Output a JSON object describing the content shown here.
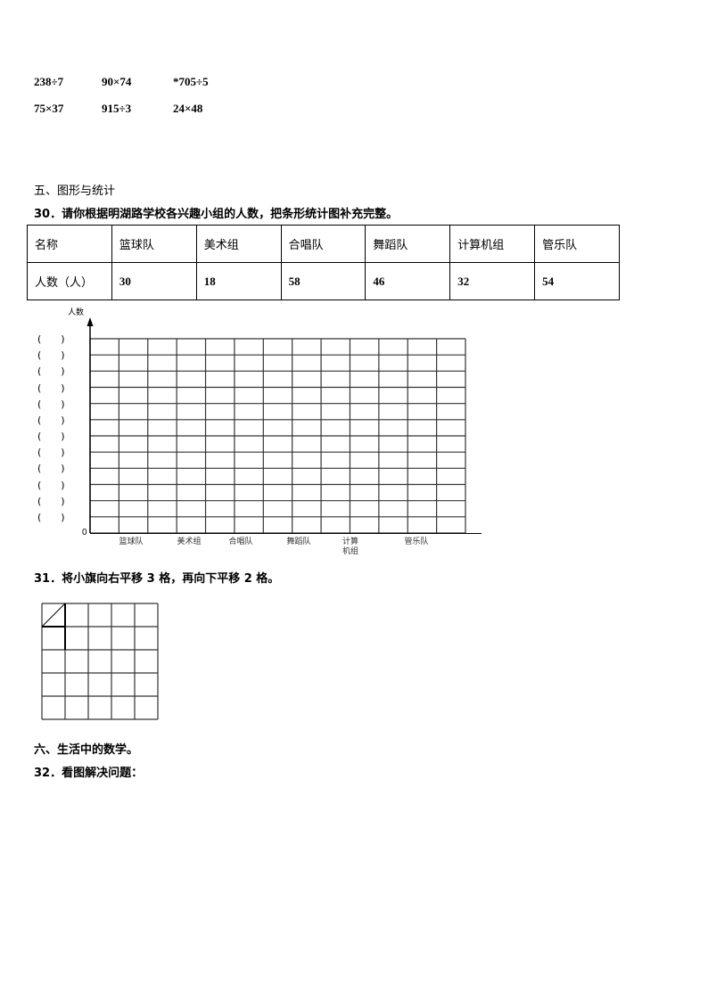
{
  "calculations": [
    [
      "238÷7",
      "90×74",
      "*705÷5"
    ],
    [
      "75×37",
      "915÷3",
      "24×48"
    ]
  ],
  "section5": {
    "title": "五、图形与统计"
  },
  "q30": {
    "text": "30．请你根据明湖路学校各兴趣小组的人数，把条形统计图补充完整。",
    "table": {
      "header": [
        "名称",
        "篮球队",
        "美术组",
        "合唱队",
        "舞蹈队",
        "计算机组",
        "管乐队"
      ],
      "row": [
        "人数（人）",
        "30",
        "18",
        "58",
        "46",
        "32",
        "54"
      ]
    },
    "chart": {
      "ylabel": "人数",
      "origin": "0",
      "blank": "(　　)",
      "categories": [
        "篮球队",
        "美术组",
        "合唱队",
        "舞蹈队",
        "计算机组",
        "管乐队"
      ]
    }
  },
  "q31": {
    "text": "31．将小旗向右平移 3 格，再向下平移 2 格。"
  },
  "section6": {
    "title": "六、生活中的数学。"
  },
  "q32": {
    "text": "32．看图解决问题："
  }
}
